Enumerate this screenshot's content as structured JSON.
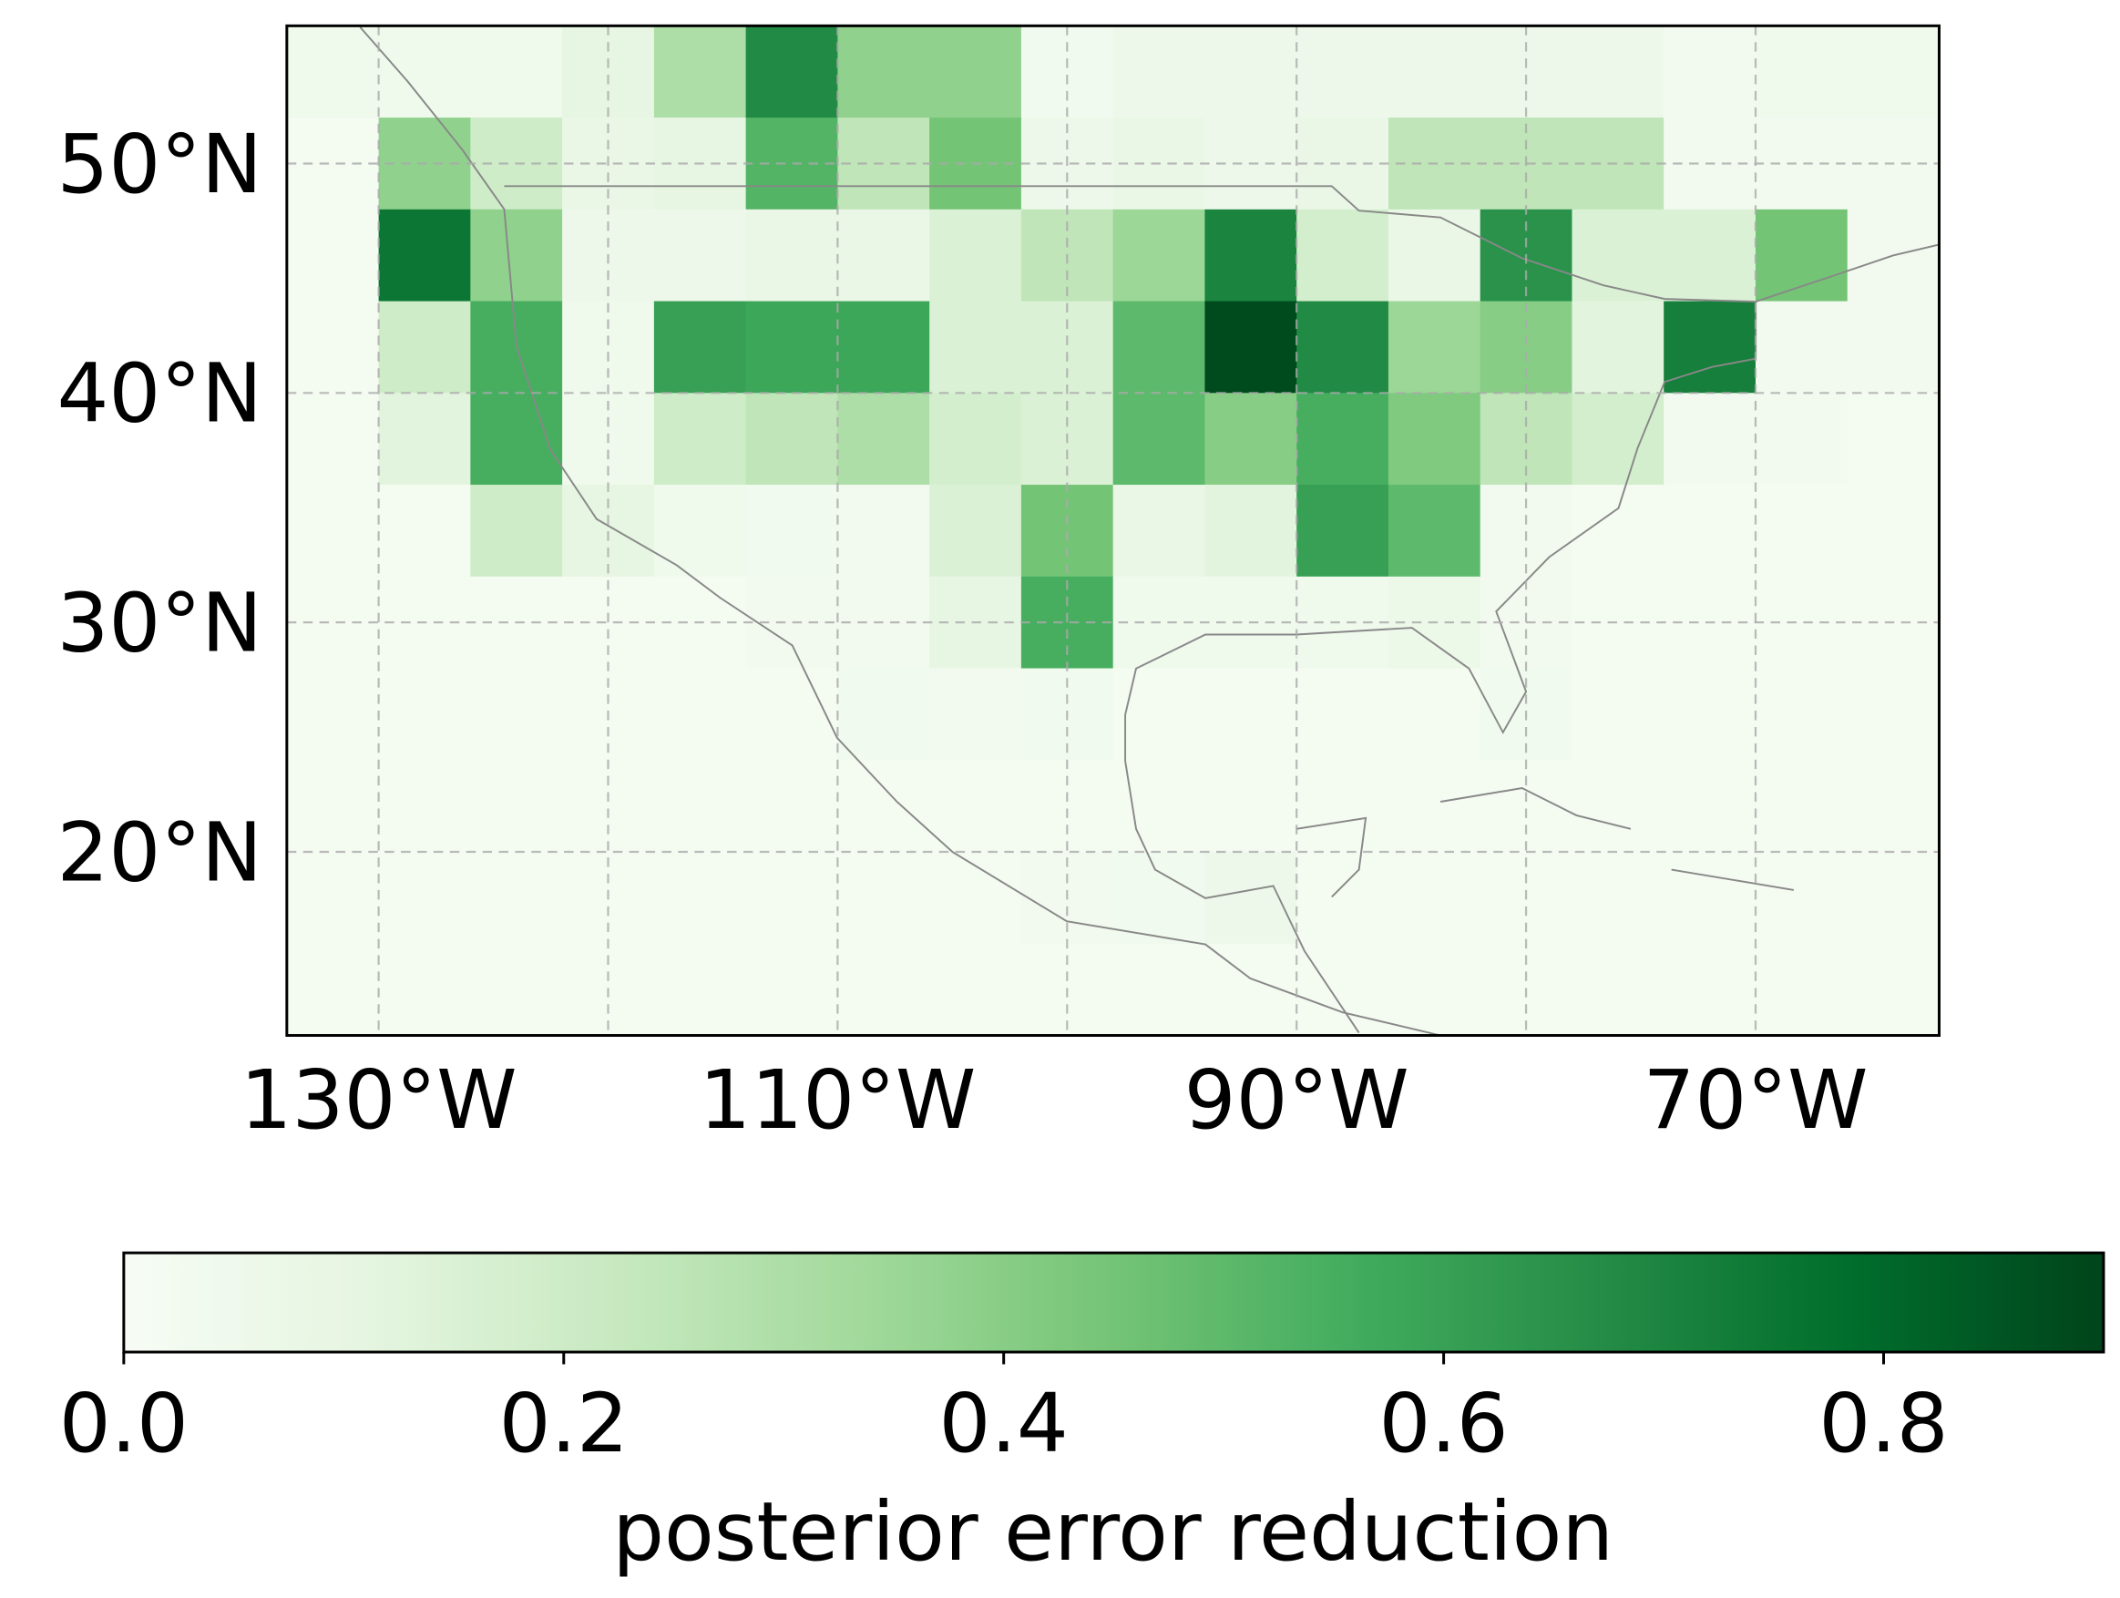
{
  "chart_data": {
    "type": "heatmap",
    "x": [
      -132,
      -128,
      -124,
      -120,
      -116,
      -112,
      -108,
      -104,
      -100,
      -96,
      -92,
      -88,
      -84,
      -80,
      -76,
      -72,
      -68,
      -64
    ],
    "y": [
      54,
      50,
      46,
      42,
      38,
      34,
      30,
      26,
      22,
      18,
      14
    ],
    "values": [
      [
        0.05,
        0.05,
        0.05,
        0.1,
        0.3,
        0.68,
        0.38,
        0.38,
        0.04,
        0.06,
        0.06,
        0.06,
        0.06,
        0.06,
        0.06,
        0.03,
        0.05,
        0.05
      ],
      [
        0.02,
        0.38,
        0.2,
        0.08,
        0.1,
        0.52,
        0.25,
        0.45,
        0.06,
        0.08,
        0.06,
        0.08,
        0.25,
        0.25,
        0.25,
        0.03,
        0.03,
        0.03
      ],
      [
        0.02,
        0.75,
        0.38,
        0.06,
        0.06,
        0.08,
        0.08,
        0.15,
        0.25,
        0.35,
        0.7,
        0.18,
        0.08,
        0.65,
        0.15,
        0.15,
        0.45,
        0.03
      ],
      [
        0.02,
        0.2,
        0.55,
        0.05,
        0.6,
        0.58,
        0.58,
        0.15,
        0.15,
        0.5,
        0.88,
        0.68,
        0.35,
        0.4,
        0.12,
        0.72,
        0.03,
        0.03
      ],
      [
        0.02,
        0.12,
        0.55,
        0.05,
        0.2,
        0.25,
        0.3,
        0.18,
        0.15,
        0.5,
        0.4,
        0.55,
        0.42,
        0.25,
        0.18,
        0.03,
        0.03,
        0.02
      ],
      [
        0.02,
        0.02,
        0.2,
        0.1,
        0.05,
        0.04,
        0.03,
        0.15,
        0.45,
        0.08,
        0.12,
        0.6,
        0.5,
        0.03,
        0.02,
        0.02,
        0.02,
        0.02
      ],
      [
        0.02,
        0.02,
        0.02,
        0.02,
        0.02,
        0.03,
        0.03,
        0.1,
        0.55,
        0.05,
        0.05,
        0.05,
        0.07,
        0.03,
        0.02,
        0.02,
        0.02,
        0.02
      ],
      [
        0.02,
        0.02,
        0.02,
        0.02,
        0.02,
        0.02,
        0.04,
        0.03,
        0.04,
        0.02,
        0.02,
        0.02,
        0.02,
        0.04,
        0.02,
        0.02,
        0.02,
        0.02
      ],
      [
        0.02,
        0.02,
        0.02,
        0.02,
        0.02,
        0.02,
        0.02,
        0.02,
        0.02,
        0.02,
        0.02,
        0.02,
        0.02,
        0.02,
        0.02,
        0.02,
        0.02,
        0.02
      ],
      [
        0.02,
        0.02,
        0.02,
        0.02,
        0.02,
        0.02,
        0.02,
        0.02,
        0.03,
        0.04,
        0.06,
        0.02,
        0.02,
        0.02,
        0.02,
        0.02,
        0.02,
        0.02
      ],
      [
        0.02,
        0.02,
        0.02,
        0.02,
        0.02,
        0.02,
        0.02,
        0.02,
        0.02,
        0.02,
        0.02,
        0.02,
        0.02,
        0.02,
        0.02,
        0.02,
        0.02,
        0.02
      ]
    ],
    "cell_size": 4,
    "xlim": [
      -134,
      -62
    ],
    "ylim": [
      12,
      56
    ],
    "xticks": [
      {
        "value": -130,
        "label": "130°W"
      },
      {
        "value": -110,
        "label": "110°W"
      },
      {
        "value": -90,
        "label": "90°W"
      },
      {
        "value": -70,
        "label": "70°W"
      }
    ],
    "yticks": [
      {
        "value": 20,
        "label": "20°N"
      },
      {
        "value": 30,
        "label": "30°N"
      },
      {
        "value": 40,
        "label": "40°N"
      },
      {
        "value": 50,
        "label": "50°N"
      }
    ],
    "xgrid": [
      -130,
      -120,
      -110,
      -100,
      -90,
      -80,
      -70
    ],
    "ygrid": [
      20,
      30,
      40,
      50
    ],
    "colormap": "Greens",
    "clim": [
      0,
      0.9
    ],
    "cticks": [
      {
        "value": 0,
        "label": "0.0"
      },
      0.2,
      0.4,
      0.6,
      0.8
    ],
    "colorbar_label": "posterior error reduction"
  }
}
